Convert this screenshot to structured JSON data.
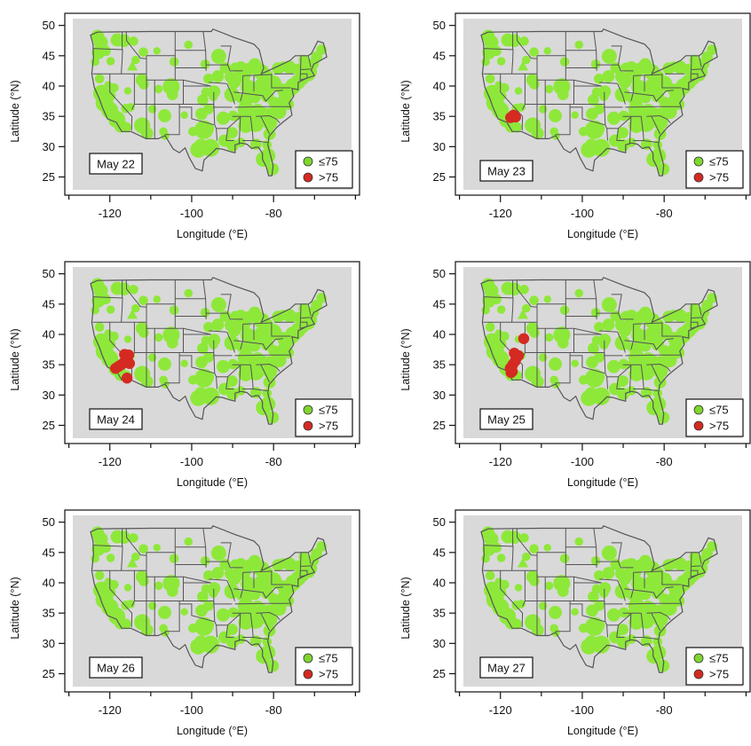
{
  "figure": {
    "colors": {
      "frame_bg": "#d9d9d9",
      "land_fill": "#8ee83a",
      "ok_point": "#7fd62e",
      "exceed_point": "#d42a22",
      "state_border": "#555555"
    },
    "legend": {
      "entries": [
        {
          "label": "≤75",
          "color": "#7fd62e"
        },
        {
          "label": ">75",
          "color": "#d42a22"
        }
      ]
    }
  },
  "chart_data": [
    {
      "type": "scatter",
      "panel_label": "May 22",
      "xlabel": "Longitude (°E)",
      "ylabel": "Latitude (°N)",
      "xlim": [
        -131,
        -59
      ],
      "ylim": [
        22,
        52
      ],
      "xticks": [
        "-120",
        "-100",
        "-80"
      ],
      "yticks": [
        "25",
        "30",
        "35",
        "40",
        "45",
        "50"
      ],
      "series": [
        {
          "name": "≤75",
          "color": "#7fd62e"
        },
        {
          "name": ">75",
          "color": "#d42a22",
          "points": []
        }
      ]
    },
    {
      "type": "scatter",
      "panel_label": "May 23",
      "xlabel": "Longitude (°E)",
      "ylabel": "Latitude (°N)",
      "xlim": [
        -131,
        -59
      ],
      "ylim": [
        22,
        52
      ],
      "xticks": [
        "-120",
        "-100",
        "-80"
      ],
      "yticks": [
        "25",
        "30",
        "35",
        "40",
        "45",
        "50"
      ],
      "series": [
        {
          "name": "≤75",
          "color": "#7fd62e"
        },
        {
          "name": ">75",
          "color": "#d42a22",
          "points": [
            [
              -117.5,
              34.8
            ],
            [
              -116.8,
              35.2
            ],
            [
              -116.3,
              34.9
            ]
          ]
        }
      ]
    },
    {
      "type": "scatter",
      "panel_label": "May 24",
      "xlabel": "Longitude (°E)",
      "ylabel": "Latitude (°N)",
      "xlim": [
        -131,
        -59
      ],
      "ylim": [
        22,
        52
      ],
      "xticks": [
        "-120",
        "-100",
        "-80"
      ],
      "yticks": [
        "25",
        "30",
        "35",
        "40",
        "45",
        "50"
      ],
      "series": [
        {
          "name": "≤75",
          "color": "#7fd62e"
        },
        {
          "name": ">75",
          "color": "#d42a22",
          "points": [
            [
              -118.6,
              34.4
            ],
            [
              -117.9,
              34.7
            ],
            [
              -117.2,
              35.0
            ],
            [
              -116.5,
              35.4
            ],
            [
              -116.0,
              35.8
            ],
            [
              -115.7,
              36.3
            ],
            [
              -116.4,
              36.7
            ],
            [
              -115.4,
              36.6
            ],
            [
              -115.2,
              35.2
            ],
            [
              -115.8,
              32.8
            ]
          ]
        }
      ]
    },
    {
      "type": "scatter",
      "panel_label": "May 25",
      "xlabel": "Longitude (°E)",
      "ylabel": "Latitude (°N)",
      "xlim": [
        -131,
        -59
      ],
      "ylim": [
        22,
        52
      ],
      "xticks": [
        "-120",
        "-100",
        "-80"
      ],
      "yticks": [
        "25",
        "30",
        "35",
        "40",
        "45",
        "50"
      ],
      "series": [
        {
          "name": "≤75",
          "color": "#7fd62e"
        },
        {
          "name": ">75",
          "color": "#d42a22",
          "points": [
            [
              -117.4,
              33.7
            ],
            [
              -117.6,
              34.4
            ],
            [
              -117.0,
              35.0
            ],
            [
              -116.4,
              35.6
            ],
            [
              -116.0,
              36.2
            ],
            [
              -116.6,
              36.9
            ],
            [
              -115.6,
              36.5
            ],
            [
              -114.3,
              39.3
            ],
            [
              -117.1,
              33.9
            ]
          ]
        }
      ]
    },
    {
      "type": "scatter",
      "panel_label": "May 26",
      "xlabel": "Longitude (°E)",
      "ylabel": "Latitude (°N)",
      "xlim": [
        -131,
        -59
      ],
      "ylim": [
        22,
        52
      ],
      "xticks": [
        "-120",
        "-100",
        "-80"
      ],
      "yticks": [
        "25",
        "30",
        "35",
        "40",
        "45",
        "50"
      ],
      "series": [
        {
          "name": "≤75",
          "color": "#7fd62e"
        },
        {
          "name": ">75",
          "color": "#d42a22",
          "points": []
        }
      ]
    },
    {
      "type": "scatter",
      "panel_label": "May 27",
      "xlabel": "Longitude (°E)",
      "ylabel": "Latitude (°N)",
      "xlim": [
        -131,
        -59
      ],
      "ylim": [
        22,
        52
      ],
      "xticks": [
        "-120",
        "-100",
        "-80"
      ],
      "yticks": [
        "25",
        "30",
        "35",
        "40",
        "45",
        "50"
      ],
      "series": [
        {
          "name": "≤75",
          "color": "#7fd62e"
        },
        {
          "name": ">75",
          "color": "#d42a22",
          "points": []
        }
      ]
    }
  ]
}
